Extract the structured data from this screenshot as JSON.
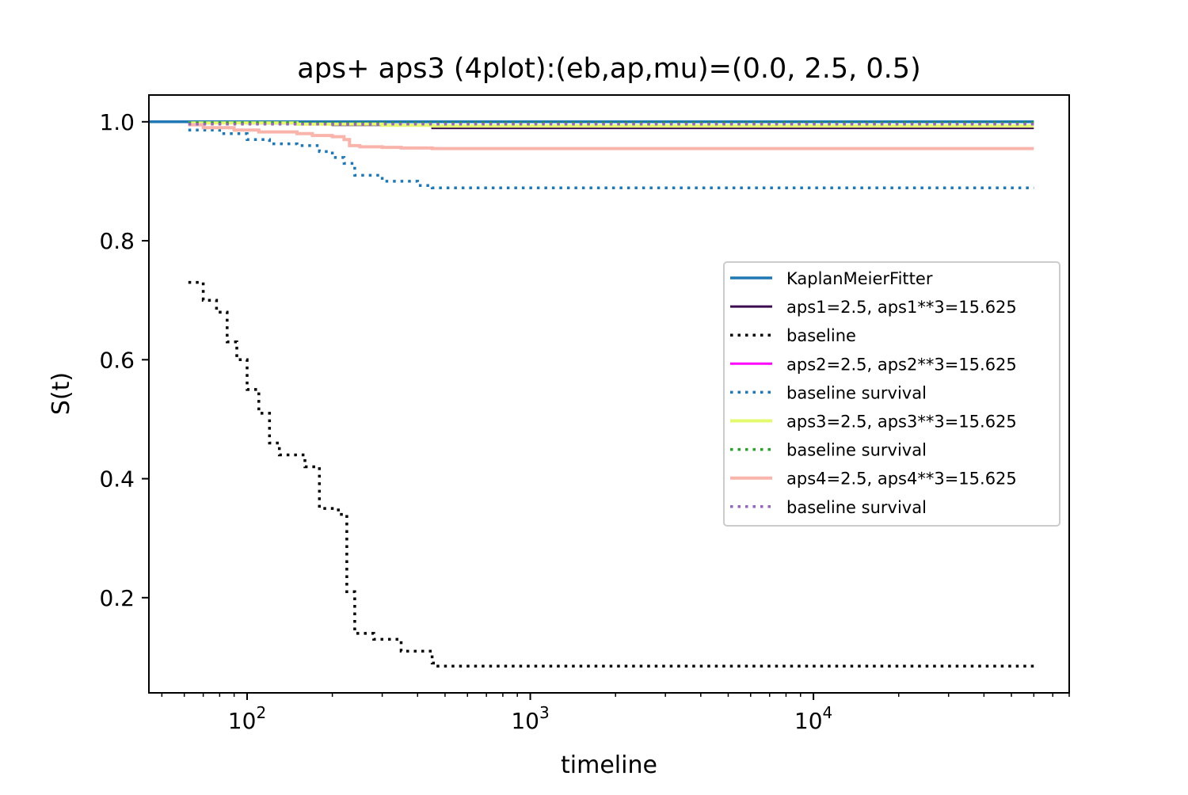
{
  "chart_data": {
    "type": "line",
    "title": "aps+ aps3 (4plot):(eb,ap,mu)=(0.0, 2.5, 0.5)",
    "xlabel": "timeline",
    "ylabel": "S(t)",
    "xscale": "log",
    "xlim": [
      45,
      80000
    ],
    "ylim": [
      0.04,
      1.045
    ],
    "xticks": [
      {
        "value": 100,
        "base": "10",
        "exp": "2"
      },
      {
        "value": 1000,
        "base": "10",
        "exp": "3"
      },
      {
        "value": 10000,
        "base": "10",
        "exp": "4"
      }
    ],
    "yticks": [
      {
        "value": 0.2,
        "label": "0.2"
      },
      {
        "value": 0.4,
        "label": "0.4"
      },
      {
        "value": 0.6,
        "label": "0.6"
      },
      {
        "value": 0.8,
        "label": "0.8"
      },
      {
        "value": 1.0,
        "label": "1.0"
      }
    ],
    "grid": false,
    "legend_position": "center-right",
    "series": [
      {
        "name": "KaplanMeierFitter",
        "color": "#1f77b4",
        "style": "solid",
        "width": 3.5,
        "x": [
          45,
          60,
          60000
        ],
        "y": [
          1.0,
          1.0,
          1.0
        ]
      },
      {
        "name": "aps1=2.5, aps1**3=15.625",
        "color": "#3b0a4f",
        "style": "solid",
        "width": 2,
        "x": [
          62,
          100,
          200,
          450,
          450,
          60000
        ],
        "y": [
          0.998,
          0.997,
          0.994,
          0.992,
          0.989,
          0.989
        ]
      },
      {
        "name": "baseline",
        "color": "#000000",
        "style": "dotted",
        "width": 3.5,
        "x": [
          62,
          70,
          78,
          85,
          92,
          100,
          110,
          120,
          130,
          160,
          180,
          210,
          225,
          240,
          280,
          350,
          450,
          460,
          60000
        ],
        "y": [
          0.73,
          0.7,
          0.68,
          0.63,
          0.6,
          0.55,
          0.51,
          0.46,
          0.44,
          0.42,
          0.35,
          0.34,
          0.21,
          0.14,
          0.13,
          0.11,
          0.09,
          0.085,
          0.085
        ]
      },
      {
        "name": "aps2=2.5, aps2**3=15.625",
        "color": "#ff00ff",
        "style": "solid",
        "width": 3,
        "x": [],
        "y": []
      },
      {
        "name": "baseline survival",
        "color": "#1f77b4",
        "style": "dotted",
        "width": 3.5,
        "x": [
          62,
          80,
          100,
          120,
          150,
          180,
          200,
          220,
          240,
          300,
          400,
          450,
          60000
        ],
        "y": [
          0.986,
          0.98,
          0.97,
          0.963,
          0.96,
          0.95,
          0.94,
          0.93,
          0.91,
          0.9,
          0.893,
          0.889,
          0.889
        ]
      },
      {
        "name": "aps3=2.5, aps3**3=15.625",
        "color": "#e4fa6e",
        "style": "solid",
        "width": 4,
        "x": [
          62,
          150,
          300,
          450,
          60000
        ],
        "y": [
          0.998,
          0.996,
          0.994,
          0.993,
          0.993
        ]
      },
      {
        "name": "baseline survival",
        "color": "#2ca02c",
        "style": "dotted",
        "width": 3.5,
        "x": [
          62,
          60000
        ],
        "y": [
          0.998,
          0.998
        ]
      },
      {
        "name": "aps4=2.5, aps4**3=15.625",
        "color": "#f9b4ac",
        "style": "solid",
        "width": 4,
        "x": [
          62,
          70,
          90,
          110,
          150,
          170,
          200,
          220,
          230,
          250,
          300,
          350,
          450,
          60000
        ],
        "y": [
          0.995,
          0.99,
          0.986,
          0.983,
          0.98,
          0.977,
          0.975,
          0.97,
          0.96,
          0.958,
          0.957,
          0.956,
          0.955,
          0.955
        ]
      },
      {
        "name": "baseline survival",
        "color": "#9467bd",
        "style": "dotted",
        "width": 3.5,
        "x": [
          62,
          60000
        ],
        "y": [
          0.996,
          0.996
        ]
      }
    ]
  }
}
